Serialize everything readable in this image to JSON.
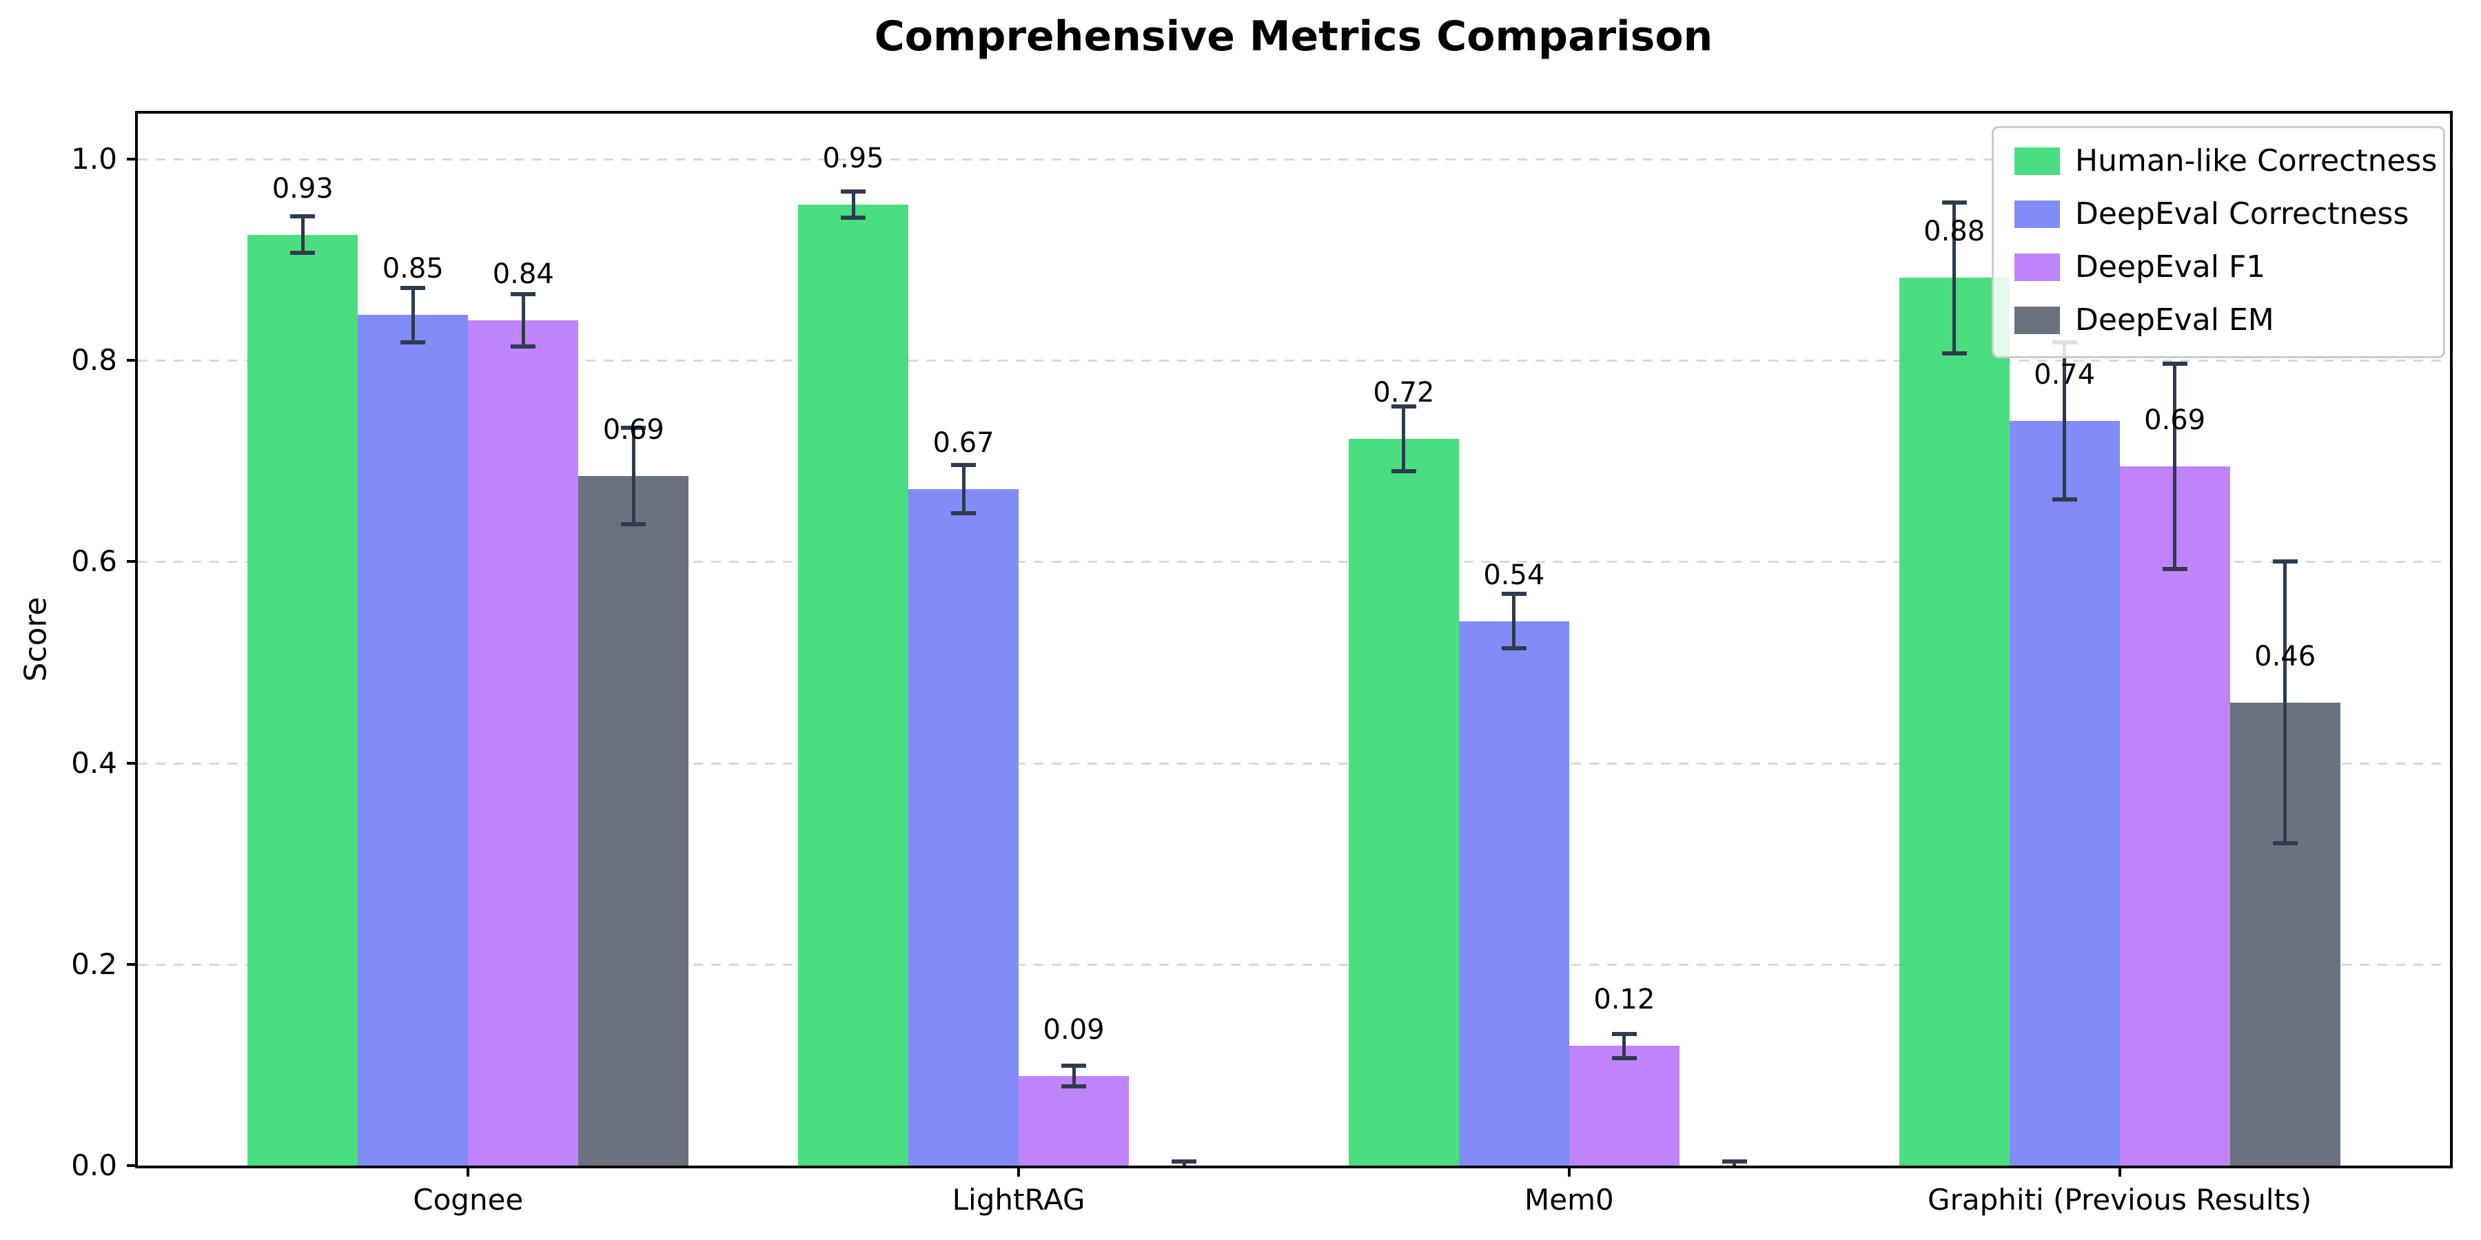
{
  "chart_data": {
    "type": "bar",
    "title": "Comprehensive Metrics Comparison",
    "xlabel": "",
    "ylabel": "Score",
    "categories": [
      "Cognee",
      "LightRAG",
      "Mem0",
      "Graphiti (Previous Results)"
    ],
    "series": [
      {
        "name": "Human-like Correctness",
        "color": "#4ade80",
        "values": [
          0.925,
          0.955,
          0.722,
          0.882
        ],
        "labels": [
          "0.93",
          "0.95",
          "0.72",
          "0.88"
        ],
        "errors": [
          0.018,
          0.013,
          0.032,
          0.075
        ]
      },
      {
        "name": "DeepEval Correctness",
        "color": "#818cf8",
        "values": [
          0.845,
          0.672,
          0.541,
          0.74
        ],
        "labels": [
          "0.85",
          "0.67",
          "0.54",
          "0.74"
        ],
        "errors": [
          0.027,
          0.024,
          0.027,
          0.078
        ]
      },
      {
        "name": "DeepEval F1",
        "color": "#c084fc",
        "values": [
          0.84,
          0.089,
          0.119,
          0.695
        ],
        "labels": [
          "0.84",
          "0.09",
          "0.12",
          "0.69"
        ],
        "errors": [
          0.026,
          0.01,
          0.012,
          0.102
        ]
      },
      {
        "name": "DeepEval EM",
        "color": "#6a7280",
        "values": [
          0.685,
          0.0,
          0.0,
          0.46
        ],
        "labels": [
          "0.69",
          "",
          "",
          "0.46"
        ],
        "errors": [
          0.048,
          0.004,
          0.004,
          0.14
        ]
      }
    ],
    "yticks": [
      "0.0",
      "0.2",
      "0.4",
      "0.6",
      "0.8",
      "1.0"
    ],
    "ylim": [
      0,
      1.045
    ],
    "grid": "dashed-horizontal",
    "legend_position": "upper-right",
    "error_bar_color": "#2f3b4e"
  }
}
